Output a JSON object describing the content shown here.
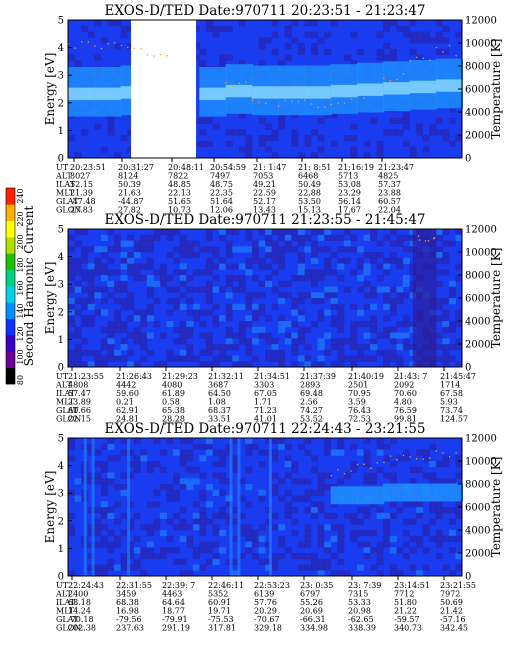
{
  "colors": {
    "background_low": "#2a1ea0",
    "background_mid": "#1a3cf0",
    "band": "#1f8cff",
    "band_core": "#7fd0ff",
    "dot": "#ff9a3c",
    "colorbar": [
      "#000000",
      "#6a0094",
      "#3a00c8",
      "#1030ff",
      "#0090ff",
      "#00d0e8",
      "#00d080",
      "#20c000",
      "#b0e000",
      "#ffff00",
      "#ffb000",
      "#ff2000"
    ]
  },
  "colorbar": {
    "label": "Second Harmonic Current",
    "ticks": [
      "80",
      "100",
      "120",
      "140",
      "160",
      "180",
      "200",
      "220",
      "240"
    ]
  },
  "chart_data": [
    {
      "type": "heatmap",
      "title": "EXOS-D/TED   Date:970711   20:23:51 - 21:23:47",
      "ylabel": "Energy [eV]",
      "y2label": "Temperature [K]",
      "ylim": [
        0,
        5
      ],
      "y2lim": [
        0,
        12000
      ],
      "yticks": [
        "0",
        "1",
        "2",
        "3",
        "4",
        "5"
      ],
      "y2ticks": [
        "0",
        "2000",
        "4000",
        "6000",
        "8000",
        "10000",
        "12000"
      ],
      "data_gap": [
        0.16,
        0.325
      ],
      "band_center": [
        2.3,
        2.3,
        2.35,
        2.3,
        2.3,
        2.3,
        2.4,
        2.35,
        2.35,
        2.35,
        2.4,
        2.45,
        2.5,
        2.55,
        2.6
      ],
      "temperature_trend": [
        10000,
        9700,
        9400,
        9000,
        null,
        null,
        6500,
        5000,
        4700,
        4900,
        5000,
        5600,
        7000,
        8700,
        9400
      ],
      "ephemeris": {
        "labels": [
          "UT",
          "ALT",
          "ILAT",
          "MLT",
          "GLAT",
          "GLON"
        ],
        "columns": [
          [
            "20:23:51",
            "8027",
            "52.15",
            "21.39",
            "-47.48",
            "27.83"
          ],
          [
            "20:31:27",
            "8124",
            "50.39",
            "21.63",
            "-44.87",
            "27.82"
          ],
          [
            "20:48:11",
            "7822",
            "48.85",
            "22.13",
            "51.65",
            "10.73"
          ],
          [
            "20:54:59",
            "7497",
            "48.75",
            "22.35",
            "51.64",
            "12.06"
          ],
          [
            "21: 1:47",
            "7053",
            "49.21",
            "22.59",
            "52.17",
            "13.43"
          ],
          [
            "21: 8:51",
            "6468",
            "50.49",
            "22.88",
            "53.50",
            "15.13"
          ],
          [
            "21:16:19",
            "5713",
            "53.08",
            "23.29",
            "56.14",
            "17.67"
          ],
          [
            "21:23:47",
            "4825",
            "57.37",
            "23.88",
            "60.57",
            "22.04"
          ]
        ]
      }
    },
    {
      "type": "heatmap",
      "title": "EXOS-D/TED   Date:970711   21:23:55 - 21:45:47",
      "ylabel": "Energy [eV]",
      "y2label": "Temperature [K]",
      "ylim": [
        0,
        5
      ],
      "y2lim": [
        0,
        12000
      ],
      "yticks": [
        "0",
        "1",
        "2",
        "3",
        "4",
        "5"
      ],
      "y2ticks": [
        "0",
        "2000",
        "4000",
        "6000",
        "8000",
        "10000",
        "12000"
      ],
      "ephemeris": {
        "labels": [
          "UT",
          "ALT",
          "ILAT",
          "MLT",
          "GLAT",
          "GLON"
        ],
        "columns": [
          [
            "21:23:55",
            "4808",
            "57.47",
            "23.89",
            "60.66",
            "22.15"
          ],
          [
            "21:26:43",
            "4442",
            "59.60",
            "0.21",
            "62.91",
            "24.81"
          ],
          [
            "21:29:23",
            "4080",
            "61.89",
            "0.58",
            "65.38",
            "28.28"
          ],
          [
            "21:32:11",
            "3687",
            "64.50",
            "1.08",
            "68.37",
            "33.51"
          ],
          [
            "21:34:51",
            "3303",
            "67.05",
            "1.71",
            "71.23",
            "41.01"
          ],
          [
            "21:37:39",
            "2893",
            "69.48",
            "2.56",
            "74.27",
            "53.52"
          ],
          [
            "21:40:19",
            "2501",
            "70.95",
            "3.59",
            "76.43",
            "72.53"
          ],
          [
            "21:43: 7",
            "2092",
            "70.60",
            "4.80",
            "76.59",
            "99.81"
          ],
          [
            "21:45:47",
            "1714",
            "67.58",
            "5.93",
            "73.74",
            "124.57"
          ]
        ]
      }
    },
    {
      "type": "heatmap",
      "title": "EXOS-D/TED   Date:970711   22:24:43 - 23:21:55",
      "ylabel": "Energy [eV]",
      "y2label": "Temperature [K]",
      "ylim": [
        0,
        5
      ],
      "y2lim": [
        0,
        12000
      ],
      "yticks": [
        "0",
        "1",
        "2",
        "3",
        "4",
        "5"
      ],
      "y2ticks": [
        "0",
        "2000",
        "4000",
        "6000",
        "8000",
        "10000",
        "12000"
      ],
      "band_center": [
        null,
        null,
        null,
        null,
        null,
        null,
        null,
        null,
        null,
        null,
        2.9,
        2.9,
        3.0,
        3.0,
        3.0
      ],
      "temperature_trend": [
        null,
        null,
        null,
        null,
        null,
        null,
        null,
        null,
        null,
        null,
        9200,
        9800,
        10200,
        10500,
        10800
      ],
      "ephemeris": {
        "labels": [
          "UT",
          "ALT",
          "ILAT",
          "MLT",
          "GLAT",
          "GLON"
        ],
        "columns": [
          [
            "22:24:43",
            "2400",
            "68.18",
            "14.24",
            "-70.18",
            "202.38"
          ],
          [
            "22:31:55",
            "3459",
            "68.38",
            "16.98",
            "-79.56",
            "237.63"
          ],
          [
            "22:39: 7",
            "4463",
            "64.64",
            "18.77",
            "-79.91",
            "291.19"
          ],
          [
            "22:46:11",
            "5352",
            "60.91",
            "19.71",
            "-75.53",
            "317.81"
          ],
          [
            "22:53:23",
            "6139",
            "57.76",
            "20.29",
            "-70.67",
            "329.18"
          ],
          [
            "23: 0:35",
            "6797",
            "55.26",
            "20.69",
            "-66.31",
            "334.98"
          ],
          [
            "23: 7:39",
            "7315",
            "53.33",
            "20.98",
            "-62.65",
            "338.39"
          ],
          [
            "23:14:51",
            "7712",
            "51.80",
            "21.22",
            "-59.57",
            "340.73"
          ],
          [
            "23:21:55",
            "7972",
            "50.69",
            "21.42",
            "-57.16",
            "342.45"
          ]
        ]
      }
    }
  ]
}
